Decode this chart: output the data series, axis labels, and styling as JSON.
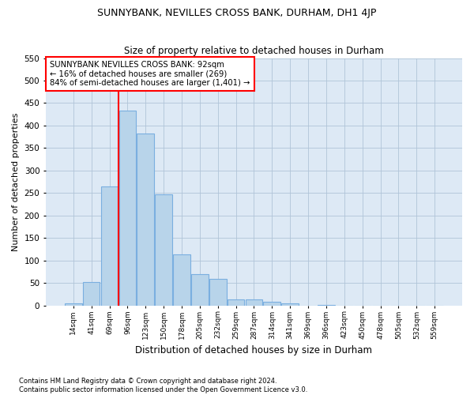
{
  "title1": "SUNNYBANK, NEVILLES CROSS BANK, DURHAM, DH1 4JP",
  "title2": "Size of property relative to detached houses in Durham",
  "xlabel": "Distribution of detached houses by size in Durham",
  "ylabel": "Number of detached properties",
  "categories": [
    "14sqm",
    "41sqm",
    "69sqm",
    "96sqm",
    "123sqm",
    "150sqm",
    "178sqm",
    "205sqm",
    "232sqm",
    "259sqm",
    "287sqm",
    "314sqm",
    "341sqm",
    "369sqm",
    "396sqm",
    "423sqm",
    "450sqm",
    "478sqm",
    "505sqm",
    "532sqm",
    "559sqm"
  ],
  "values": [
    5,
    52,
    265,
    433,
    383,
    248,
    113,
    70,
    60,
    14,
    13,
    8,
    5,
    0,
    1,
    0,
    0,
    0,
    0,
    0,
    0
  ],
  "bar_color": "#b8d4ea",
  "bar_edge_color": "#7aafe0",
  "vline_color": "red",
  "vline_x_index": 3,
  "annotation_text": "SUNNYBANK NEVILLES CROSS BANK: 92sqm\n← 16% of detached houses are smaller (269)\n84% of semi-detached houses are larger (1,401) →",
  "annotation_box_color": "white",
  "annotation_box_edge_color": "red",
  "ylim": [
    0,
    550
  ],
  "yticks": [
    0,
    50,
    100,
    150,
    200,
    250,
    300,
    350,
    400,
    450,
    500,
    550
  ],
  "footer1": "Contains HM Land Registry data © Crown copyright and database right 2024.",
  "footer2": "Contains public sector information licensed under the Open Government Licence v3.0.",
  "bg_color": "#ffffff",
  "ax_bg_color": "#dde9f5",
  "grid_color": "#b0c4d8"
}
